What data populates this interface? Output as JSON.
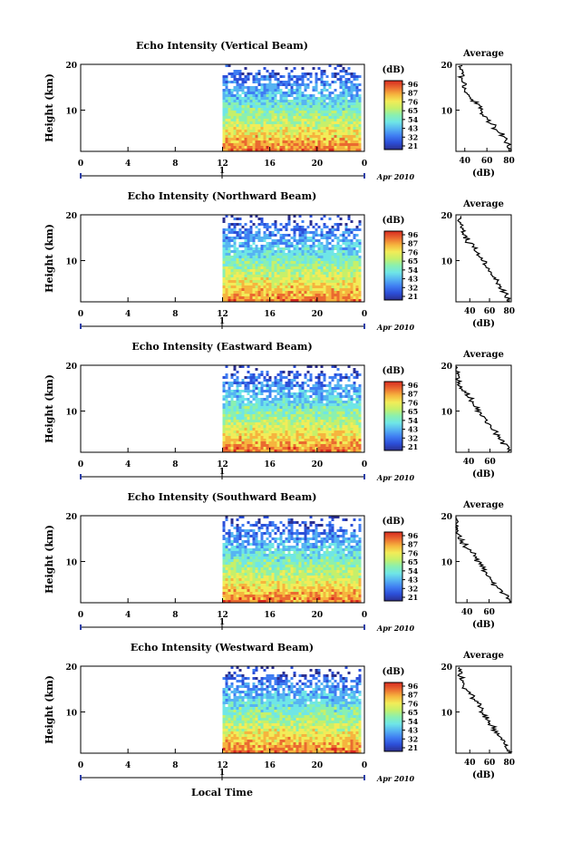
{
  "figure": {
    "xlabel": "Local Time",
    "date_label": "Apr 2010",
    "day_marker": "1",
    "colorbar_unit": "(dB)",
    "colorbar_ticks": [
      "96",
      "87",
      "76",
      "65",
      "54",
      "43",
      "32",
      "21"
    ],
    "avg_title": "Average",
    "avg_xlabel": "(dB)",
    "ylabel": "Height (km)"
  },
  "chart_data": [
    {
      "type": "heatmap",
      "title": "Echo Intensity (Vertical Beam)",
      "x_ticks": [
        "0",
        "4",
        "8",
        "12",
        "16",
        "20",
        "0"
      ],
      "y_ticks": [
        "20",
        "10"
      ],
      "xlim": [
        0,
        24
      ],
      "ylim": [
        1,
        20
      ],
      "data_start_hour": 12,
      "average_profile": {
        "type": "line",
        "title": "Average",
        "xlabel": "(dB)",
        "x_ticks": [
          "40",
          "60",
          "80"
        ],
        "y_ticks": [
          "20",
          "10"
        ],
        "xlim": [
          32,
          82
        ],
        "ylim": [
          1,
          20
        ],
        "values_db": [
          80,
          79,
          77,
          74,
          70,
          66,
          62,
          58,
          56,
          54,
          51,
          47,
          43,
          40,
          39,
          38,
          37,
          38,
          36
        ]
      }
    },
    {
      "type": "heatmap",
      "title": "Echo Intensity (Northward Beam)",
      "x_ticks": [
        "0",
        "4",
        "8",
        "12",
        "16",
        "20",
        "0"
      ],
      "y_ticks": [
        "20",
        "10"
      ],
      "xlim": [
        0,
        24
      ],
      "ylim": [
        1,
        20
      ],
      "data_start_hour": 12,
      "average_profile": {
        "type": "line",
        "title": "Average",
        "xlabel": "(dB)",
        "x_ticks": [
          "40",
          "60",
          "80"
        ],
        "y_ticks": [
          "20",
          "10"
        ],
        "xlim": [
          26,
          82
        ],
        "ylim": [
          1,
          20
        ],
        "values_db": [
          80,
          77,
          74,
          71,
          67,
          64,
          61,
          58,
          55,
          52,
          49,
          46,
          42,
          38,
          35,
          33,
          32,
          30,
          29
        ]
      }
    },
    {
      "type": "heatmap",
      "title": "Echo Intensity (Eastward Beam)",
      "x_ticks": [
        "0",
        "4",
        "8",
        "12",
        "16",
        "20",
        "0"
      ],
      "y_ticks": [
        "20",
        "10"
      ],
      "xlim": [
        0,
        24
      ],
      "ylim": [
        1,
        20
      ],
      "data_start_hour": 12,
      "average_profile": {
        "type": "line",
        "title": "Average",
        "xlabel": "(dB)",
        "x_ticks": [
          "40",
          "60"
        ],
        "y_ticks": [
          "20",
          "10"
        ],
        "xlim": [
          28,
          80
        ],
        "ylim": [
          1,
          20
        ],
        "values_db": [
          79,
          76,
          72,
          69,
          65,
          62,
          58,
          55,
          52,
          49,
          46,
          43,
          39,
          35,
          32,
          31,
          30,
          29,
          28
        ]
      }
    },
    {
      "type": "heatmap",
      "title": "Echo Intensity (Southward Beam)",
      "x_ticks": [
        "0",
        "4",
        "8",
        "12",
        "16",
        "20",
        "0"
      ],
      "y_ticks": [
        "20",
        "10"
      ],
      "xlim": [
        0,
        24
      ],
      "ylim": [
        1,
        20
      ],
      "data_start_hour": 12,
      "average_profile": {
        "type": "line",
        "title": "Average",
        "xlabel": "(dB)",
        "x_ticks": [
          "40",
          "60"
        ],
        "y_ticks": [
          "20",
          "10"
        ],
        "xlim": [
          30,
          80
        ],
        "ylim": [
          1,
          20
        ],
        "values_db": [
          79,
          76,
          72,
          68,
          64,
          61,
          58,
          55,
          52,
          49,
          46,
          42,
          38,
          35,
          33,
          32,
          31,
          30,
          29
        ]
      }
    },
    {
      "type": "heatmap",
      "title": "Echo Intensity (Westward Beam)",
      "x_ticks": [
        "0",
        "4",
        "8",
        "12",
        "16",
        "20",
        "0"
      ],
      "y_ticks": [
        "20",
        "10"
      ],
      "xlim": [
        0,
        24
      ],
      "ylim": [
        1,
        20
      ],
      "data_start_hour": 12,
      "average_profile": {
        "type": "line",
        "title": "Average",
        "xlabel": "(dB)",
        "x_ticks": [
          "40",
          "60",
          "80"
        ],
        "y_ticks": [
          "20",
          "10"
        ],
        "xlim": [
          26,
          82
        ],
        "ylim": [
          1,
          20
        ],
        "values_db": [
          80,
          77,
          74,
          71,
          67,
          64,
          61,
          58,
          55,
          52,
          49,
          46,
          43,
          39,
          35,
          33,
          32,
          30,
          29
        ]
      }
    }
  ],
  "colors": {
    "colormap": [
      "#2b2f8f",
      "#2c4fd8",
      "#3f7df2",
      "#56b4f2",
      "#6fe6e6",
      "#8af0b0",
      "#c6f06a",
      "#f2ec58",
      "#f6b43e",
      "#ea6a30",
      "#d82a20"
    ],
    "axis": "#000000",
    "time_bar": "#2b3fa8"
  }
}
